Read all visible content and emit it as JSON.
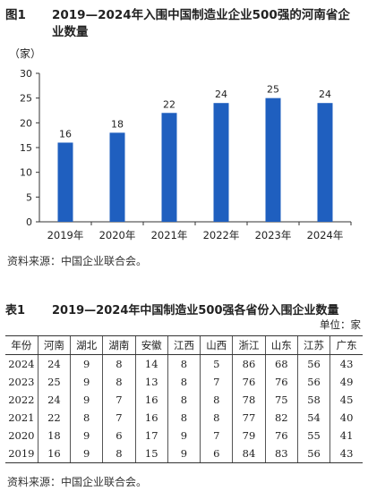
{
  "figure": {
    "label": "图1",
    "title": "2019—2024年入围中国制造业企业500强的河南省企业数量",
    "source": "资料来源：中国企业联合会。"
  },
  "chart_data": {
    "type": "bar",
    "ylabel": "（家）",
    "categories": [
      "2019年",
      "2020年",
      "2021年",
      "2022年",
      "2023年",
      "2024年"
    ],
    "values": [
      16,
      18,
      22,
      24,
      25,
      24
    ],
    "ylim": [
      0,
      30
    ],
    "yticks": [
      0,
      5,
      10,
      15,
      20,
      25,
      30
    ],
    "bar_color": "#1f5fbf",
    "grid": false
  },
  "table": {
    "label": "表1",
    "title": "2019—2024年中国制造业500强各省份入围企业数量",
    "unit": "单位：家",
    "columns": [
      "年份",
      "河南",
      "湖北",
      "湖南",
      "安徽",
      "江西",
      "山西",
      "浙江",
      "山东",
      "江苏",
      "广东"
    ],
    "rows": [
      [
        "2024",
        "24",
        "9",
        "8",
        "14",
        "8",
        "5",
        "86",
        "68",
        "56",
        "43"
      ],
      [
        "2023",
        "25",
        "9",
        "8",
        "13",
        "8",
        "7",
        "76",
        "76",
        "56",
        "49"
      ],
      [
        "2022",
        "24",
        "9",
        "7",
        "16",
        "8",
        "8",
        "78",
        "75",
        "58",
        "45"
      ],
      [
        "2021",
        "22",
        "8",
        "7",
        "16",
        "8",
        "8",
        "77",
        "82",
        "54",
        "40"
      ],
      [
        "2020",
        "18",
        "9",
        "6",
        "17",
        "9",
        "7",
        "79",
        "76",
        "55",
        "41"
      ],
      [
        "2019",
        "16",
        "9",
        "8",
        "15",
        "9",
        "6",
        "84",
        "83",
        "56",
        "43"
      ]
    ],
    "source": "资料来源：中国企业联合会。"
  }
}
